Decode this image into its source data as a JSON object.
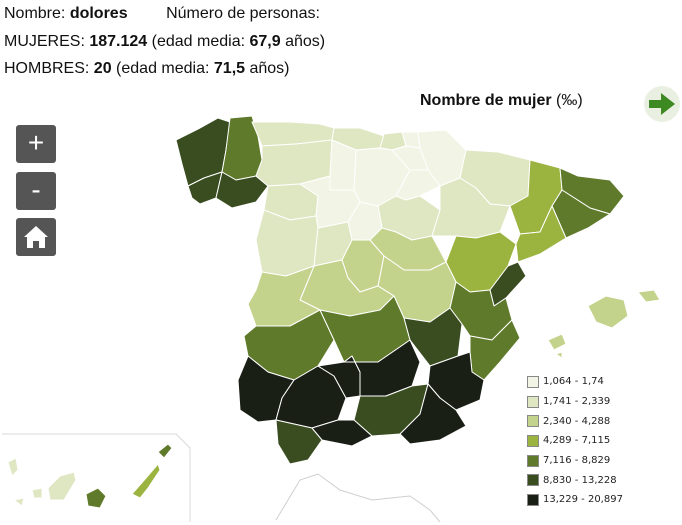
{
  "info": {
    "name_label": "Nombre:",
    "name_value": "dolores",
    "persons_label": "Número de personas:",
    "women_label": "MUJERES:",
    "women_count": "187.124",
    "women_age_label": "(edad media:",
    "women_age": "67,9",
    "years_label": "años)",
    "men_label": "HOMBRES:",
    "men_count": "20",
    "men_age_label": "(edad media:",
    "men_age": "71,5",
    "men_years_label": "años)"
  },
  "map": {
    "title": "Nombre de mujer",
    "unit": "(‰)",
    "zoom_in": "+",
    "zoom_out": "-"
  },
  "legend": {
    "items": [
      {
        "label": "1,064 - 1,74",
        "color": "#f2f4e6"
      },
      {
        "label": "1,741 - 2,339",
        "color": "#dfe6c2"
      },
      {
        "label": "2,340 - 4,288",
        "color": "#c3d38c"
      },
      {
        "label": "4,289 - 7,115",
        "color": "#9bb33f"
      },
      {
        "label": "7,116 - 8,829",
        "color": "#5f7a2b"
      },
      {
        "label": "8,830 - 13,228",
        "color": "#3a4d20"
      },
      {
        "label": "13,229 - 20,897",
        "color": "#1a1f16"
      }
    ]
  }
}
